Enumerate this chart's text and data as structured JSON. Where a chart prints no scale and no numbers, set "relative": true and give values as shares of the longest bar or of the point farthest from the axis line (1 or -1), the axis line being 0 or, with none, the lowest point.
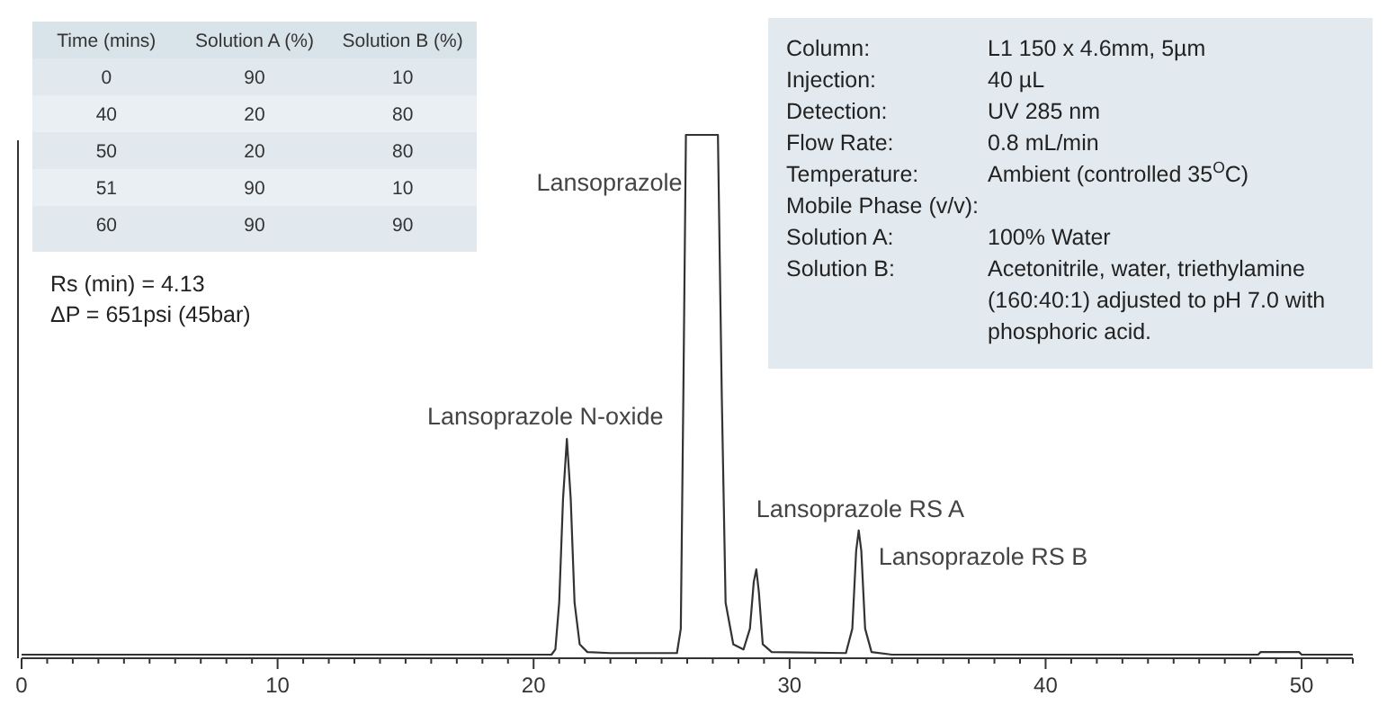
{
  "chart_data": [
    {
      "type": "line",
      "relative": true,
      "xlim": [
        0,
        52
      ],
      "xticks": [
        0,
        {
          "value": 1,
          "label": null
        },
        {
          "value": 2,
          "label": null
        },
        {
          "value": 3,
          "label": null
        },
        {
          "value": 4,
          "label": null
        },
        {
          "value": 5,
          "label": null
        },
        {
          "value": 6,
          "label": null
        },
        {
          "value": 7,
          "label": null
        },
        {
          "value": 8,
          "label": null
        },
        {
          "value": 9,
          "label": null
        },
        10,
        {
          "value": 11,
          "label": null
        },
        {
          "value": 12,
          "label": null
        },
        {
          "value": 13,
          "label": null
        },
        {
          "value": 14,
          "label": null
        },
        {
          "value": 15,
          "label": null
        },
        {
          "value": 16,
          "label": null
        },
        {
          "value": 17,
          "label": null
        },
        {
          "value": 18,
          "label": null
        },
        {
          "value": 19,
          "label": null
        },
        20,
        {
          "value": 21,
          "label": null
        },
        {
          "value": 22,
          "label": null
        },
        {
          "value": 23,
          "label": null
        },
        {
          "value": 24,
          "label": null
        },
        {
          "value": 25,
          "label": null
        },
        {
          "value": 26,
          "label": null
        },
        {
          "value": 27,
          "label": null
        },
        {
          "value": 28,
          "label": null
        },
        {
          "value": 29,
          "label": null
        },
        30,
        {
          "value": 31,
          "label": null
        },
        {
          "value": 32,
          "label": null
        },
        {
          "value": 33,
          "label": null
        },
        {
          "value": 34,
          "label": null
        },
        {
          "value": 35,
          "label": null
        },
        {
          "value": 36,
          "label": null
        },
        {
          "value": 37,
          "label": null
        },
        {
          "value": 38,
          "label": null
        },
        {
          "value": 39,
          "label": null
        },
        40,
        {
          "value": 41,
          "label": null
        },
        {
          "value": 42,
          "label": null
        },
        {
          "value": 43,
          "label": null
        },
        {
          "value": 44,
          "label": null
        },
        {
          "value": 45,
          "label": null
        },
        {
          "value": 46,
          "label": null
        },
        {
          "value": 47,
          "label": null
        },
        {
          "value": 48,
          "label": null
        },
        {
          "value": 49,
          "label": null
        },
        50,
        {
          "value": 51,
          "label": null
        },
        {
          "value": 52,
          "label": null
        }
      ],
      "x": [
        0,
        20.7,
        20.85,
        21.0,
        21.15,
        21.3,
        21.45,
        21.6,
        21.8,
        22.1,
        23,
        25.6,
        25.75,
        25.85,
        25.95,
        27.2,
        27.35,
        27.5,
        27.8,
        28.2,
        28.45,
        28.6,
        28.7,
        28.8,
        28.95,
        29.3,
        32.2,
        32.45,
        32.6,
        32.7,
        32.8,
        32.95,
        33.2,
        34,
        48.3,
        48.4,
        49.9,
        50,
        52
      ],
      "series": [
        {
          "color": "#333333",
          "values": [
            0,
            0,
            0.01,
            0.1,
            0.3,
            0.415,
            0.3,
            0.1,
            0.02,
            0.005,
            0.003,
            0.003,
            0.05,
            0.5,
            1,
            1,
            0.5,
            0.1,
            0.02,
            0.01,
            0.05,
            0.14,
            0.164,
            0.12,
            0.02,
            0.005,
            0.003,
            0.05,
            0.2,
            0.239,
            0.2,
            0.05,
            0.005,
            0,
            0,
            0.005,
            0.005,
            0,
            0
          ]
        }
      ],
      "marker": "none",
      "line_style": "solid",
      "grid": false,
      "annotations": [
        "Rs (min) = 4.13",
        "ΔP = 651psi (45bar)",
        {
          "text": "Lansoprazole",
          "x": 25.95,
          "y": 1
        },
        {
          "text": "Lansoprazole N-oxide",
          "x": 21.3,
          "y": 0.415
        },
        {
          "text": "Lansoprazole RS A",
          "x": 28.7,
          "y": 0.164
        },
        {
          "text": "Lansoprazole RS B",
          "x": 32.7,
          "y": 0.239
        }
      ]
    },
    {
      "type": "other",
      "categories": [
        "Time (mins)",
        "Solution A (%)",
        "Solution B (%)"
      ],
      "cell_labels": [
        [
          "0",
          "90",
          "10"
        ],
        [
          "40",
          "20",
          "80"
        ],
        [
          "50",
          "20",
          "80"
        ],
        [
          "51",
          "90",
          "10"
        ],
        [
          "60",
          "90",
          "90"
        ]
      ]
    },
    {
      "type": "other",
      "cell_labels": [
        [
          "Column:",
          "L1 150 x 4.6mm, 5µm"
        ],
        [
          "Injection:",
          "40 µL"
        ],
        [
          "Detection:",
          "UV 285 nm"
        ],
        [
          "Flow Rate:",
          "0.8 mL/min"
        ],
        [
          "Temperature:",
          "Ambient (controlled 35$^{O}$C)"
        ],
        [
          "Mobile Phase (v/v):",
          null
        ],
        [
          "Solution A:",
          "100% Water"
        ],
        [
          "Solution B:",
          "Acetonitrile, water, triethylamine (160:40:1) adjusted to pH 7.0 with phosphoric acid."
        ]
      ]
    }
  ]
}
